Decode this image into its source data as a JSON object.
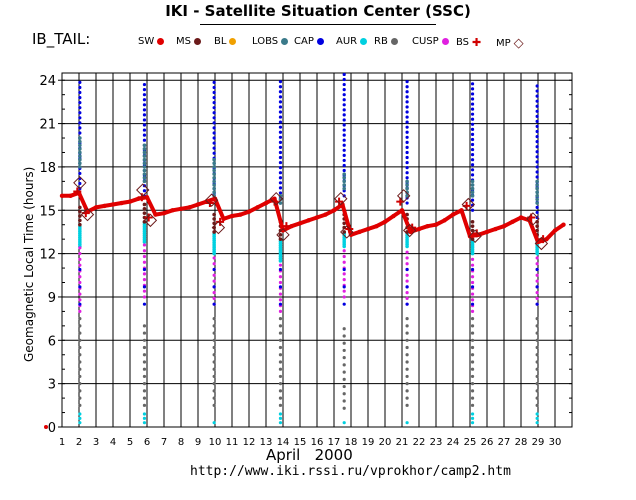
{
  "header": {
    "title": "IKI - Satellite Situation Center (SSC)",
    "satellite": "IB_TAIL:"
  },
  "legend": [
    {
      "label": "SW",
      "color": "#e00000",
      "shape": "dot"
    },
    {
      "label": "MS",
      "color": "#6b1a1a",
      "shape": "dot"
    },
    {
      "label": "BL",
      "color": "#f0a000",
      "shape": "dot"
    },
    {
      "label": "LOBS",
      "color": "#3a7a8a",
      "shape": "dot"
    },
    {
      "label": "CAP",
      "color": "#0000e0",
      "shape": "dot"
    },
    {
      "label": "AUR",
      "color": "#00d0e0",
      "shape": "dot"
    },
    {
      "label": "RB",
      "color": "#666666",
      "shape": "dot"
    },
    {
      "label": "CUSP",
      "color": "#e020e0",
      "shape": "dot"
    },
    {
      "label": "BS",
      "color": "#d00000",
      "shape": "cross"
    },
    {
      "label": "MP",
      "color": "#6b1a1a",
      "shape": "diamond"
    }
  ],
  "footer": {
    "xlabel": "April   2000",
    "url": "http://www.iki.rssi.ru/vprokhor/camp2.htm"
  },
  "chart_data": {
    "type": "scatter",
    "title": "IKI - Satellite Situation Center (SSC)",
    "xlabel": "April 2000",
    "ylabel": "Geomagnetic Local Time (hours)",
    "x_ticks": [
      1,
      2,
      3,
      4,
      5,
      6,
      7,
      8,
      9,
      10,
      11,
      12,
      13,
      14,
      15,
      16,
      17,
      18,
      19,
      20,
      21,
      22,
      23,
      24,
      25,
      26,
      27,
      28,
      29,
      30
    ],
    "y_ticks": [
      0,
      3,
      6,
      9,
      12,
      15,
      18,
      21,
      24
    ],
    "xlim": [
      1,
      31
    ],
    "ylim": [
      0,
      24.5
    ],
    "grid": true,
    "sw_series": {
      "name": "SW",
      "color": "#e00000",
      "x": [
        1.0,
        1.5,
        2.0,
        2.5,
        3.0,
        3.5,
        4.0,
        4.5,
        5.0,
        5.5,
        6.0,
        6.5,
        7.0,
        7.5,
        8.0,
        8.5,
        9.0,
        9.5,
        10.0,
        10.5,
        11.0,
        11.5,
        12.0,
        12.5,
        13.0,
        13.5,
        14.0,
        14.5,
        15.0,
        15.5,
        16.0,
        16.5,
        17.0,
        17.5,
        18.0,
        18.5,
        19.0,
        19.5,
        20.0,
        20.5,
        21.0,
        21.5,
        22.0,
        22.5,
        23.0,
        23.5,
        24.0,
        24.5,
        25.0,
        25.5,
        26.0,
        26.5,
        27.0,
        27.5,
        28.0,
        28.5,
        29.0,
        29.5,
        30.0,
        30.5
      ],
      "y": [
        16.0,
        16.0,
        16.2,
        14.9,
        15.2,
        15.3,
        15.4,
        15.5,
        15.6,
        15.8,
        15.9,
        14.7,
        14.8,
        15.0,
        15.1,
        15.2,
        15.4,
        15.6,
        15.8,
        14.4,
        14.6,
        14.7,
        14.9,
        15.2,
        15.5,
        15.8,
        13.6,
        13.9,
        14.1,
        14.3,
        14.5,
        14.7,
        15.0,
        15.4,
        13.3,
        13.5,
        13.7,
        13.9,
        14.2,
        14.6,
        15.0,
        13.5,
        13.7,
        13.9,
        14.0,
        14.3,
        14.7,
        15.0,
        13.2,
        13.3,
        13.5,
        13.7,
        13.9,
        14.2,
        14.5,
        14.3,
        12.8,
        13.0,
        13.6,
        14.0
      ]
    },
    "passes": [
      {
        "x": 2.05,
        "cap_from": 16.5,
        "cap_to": 24.2,
        "lobs_from": 18.0,
        "lobs_to": 20.0,
        "aur_from": 12.5,
        "aur_to": 14.0,
        "cusp_from": 8.0,
        "cusp_to": 12.5,
        "rb_from": 0.5,
        "rb_to": 7.5,
        "aur_low_to": 1.0
      },
      {
        "x": 5.85,
        "cap_from": 16.0,
        "cap_to": 24.0,
        "lobs_from": 17.0,
        "lobs_to": 19.5,
        "aur_from": 12.8,
        "aur_to": 14.2,
        "cusp_from": 9.0,
        "cusp_to": 12.8,
        "rb_from": 0.5,
        "rb_to": 7.0,
        "aur_low_to": 1.0
      },
      {
        "x": 9.95,
        "cap_from": 15.8,
        "cap_to": 24.2,
        "lobs_from": 16.0,
        "lobs_to": 18.5,
        "aur_from": 12.0,
        "aur_to": 13.5,
        "cusp_from": 8.5,
        "cusp_to": 12.0,
        "rb_from": 0.5,
        "rb_to": 7.5,
        "aur_low_to": 0.5
      },
      {
        "x": 13.85,
        "cap_from": 15.5,
        "cap_to": 24.0,
        "lobs_from": 15.5,
        "lobs_to": 16.0,
        "aur_from": 11.5,
        "aur_to": 13.0,
        "cusp_from": 8.0,
        "cusp_to": 11.5,
        "rb_from": 0.5,
        "rb_to": 7.5,
        "aur_low_to": 1.0
      },
      {
        "x": 17.6,
        "cap_from": 16.0,
        "cap_to": 24.5,
        "lobs_from": 16.5,
        "lobs_to": 17.5,
        "aur_from": 12.5,
        "aur_to": 13.5,
        "cusp_from": 9.0,
        "cusp_to": 12.5,
        "rb_from": 0.3,
        "rb_to": 7.0,
        "aur_low_to": 0.5
      },
      {
        "x": 21.3,
        "cap_from": 15.5,
        "cap_to": 24.2,
        "lobs_from": 16.0,
        "lobs_to": 17.0,
        "aur_from": 12.5,
        "aur_to": 13.5,
        "cusp_from": 8.5,
        "cusp_to": 12.5,
        "rb_from": 0.5,
        "rb_to": 7.5,
        "aur_low_to": 0.5
      },
      {
        "x": 25.15,
        "cap_from": 15.0,
        "cap_to": 24.0,
        "lobs_from": 16.0,
        "lobs_to": 17.0,
        "aur_from": 12.0,
        "aur_to": 13.0,
        "cusp_from": 8.0,
        "cusp_to": 12.0,
        "rb_from": 0.5,
        "rb_to": 7.5,
        "aur_low_to": 1.0
      },
      {
        "x": 28.95,
        "cap_from": 14.5,
        "cap_to": 23.8,
        "lobs_from": 15.5,
        "lobs_to": 17.0,
        "aur_from": 12.0,
        "aur_to": 13.0,
        "cusp_from": 8.5,
        "cusp_to": 12.0,
        "rb_from": 0.5,
        "rb_to": 7.5,
        "aur_low_to": 1.0
      }
    ],
    "mp_crossings": [
      {
        "x": 2.05,
        "y": 16.9
      },
      {
        "x": 2.5,
        "y": 14.7
      },
      {
        "x": 5.75,
        "y": 16.4
      },
      {
        "x": 6.2,
        "y": 14.3
      },
      {
        "x": 9.8,
        "y": 15.7
      },
      {
        "x": 10.2,
        "y": 13.8
      },
      {
        "x": 13.6,
        "y": 15.8
      },
      {
        "x": 14.0,
        "y": 13.3
      },
      {
        "x": 17.4,
        "y": 15.8
      },
      {
        "x": 17.75,
        "y": 13.5
      },
      {
        "x": 21.1,
        "y": 16.0
      },
      {
        "x": 21.45,
        "y": 13.6
      },
      {
        "x": 24.9,
        "y": 15.4
      },
      {
        "x": 25.3,
        "y": 13.2
      },
      {
        "x": 28.7,
        "y": 14.4
      },
      {
        "x": 29.2,
        "y": 12.7
      }
    ],
    "bs_crossings": [
      {
        "x": 1.9,
        "y": 16.3
      },
      {
        "x": 2.4,
        "y": 14.8
      },
      {
        "x": 5.7,
        "y": 15.9
      },
      {
        "x": 6.1,
        "y": 14.5
      },
      {
        "x": 9.7,
        "y": 15.5
      },
      {
        "x": 10.3,
        "y": 14.2
      },
      {
        "x": 13.5,
        "y": 15.6
      },
      {
        "x": 14.2,
        "y": 13.9
      },
      {
        "x": 17.3,
        "y": 15.6
      },
      {
        "x": 17.9,
        "y": 13.7
      },
      {
        "x": 20.9,
        "y": 15.6
      },
      {
        "x": 21.6,
        "y": 13.8
      },
      {
        "x": 24.8,
        "y": 15.3
      },
      {
        "x": 25.4,
        "y": 13.4
      },
      {
        "x": 28.6,
        "y": 14.5
      },
      {
        "x": 29.3,
        "y": 13.0
      }
    ]
  }
}
